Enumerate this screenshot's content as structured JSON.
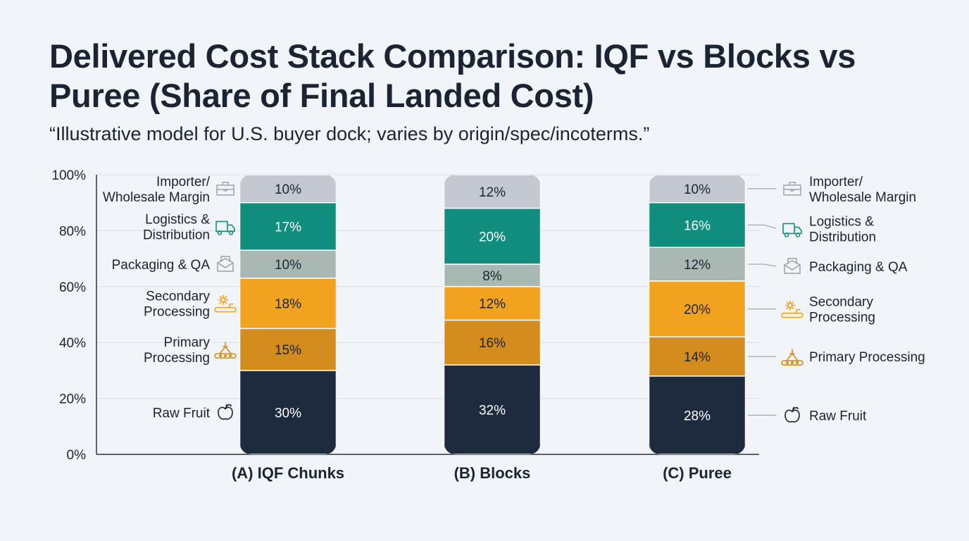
{
  "title": "Delivered Cost Stack Comparison: IQF vs Blocks vs Puree (Share  of Final Landed Cost)",
  "subtitle": "“Illustrative model for U.S. buyer dock; varies by origin/spec/incoterms.”",
  "colors": {
    "background": "#f1f4f8",
    "gridline": "#d9dee6",
    "axis": "#2b3340",
    "text": "#1b2433",
    "leader": "#9aa3ad"
  },
  "chart_data": {
    "type": "bar",
    "stacked": true,
    "ylim": [
      0,
      100
    ],
    "yticks": [
      "0%",
      "20%",
      "40%",
      "60%",
      "80%",
      "100%"
    ],
    "grid": true,
    "categories": [
      "(A) IQF Chunks",
      "(B) Blocks",
      "(C) Puree"
    ],
    "series": [
      {
        "name": "Raw Fruit",
        "color": "#1e2a3e",
        "label_color": "#ffffff",
        "icon": "apple-icon",
        "values": [
          30,
          32,
          28
        ]
      },
      {
        "name": "Primary Processing",
        "color": "#d48c1c",
        "label_color": "#1b2433",
        "icon": "conveyor-icon",
        "values": [
          15,
          16,
          14
        ]
      },
      {
        "name": "Secondary Processing",
        "color": "#f1a21f",
        "label_color": "#1b2433",
        "icon": "gear-conveyor-icon",
        "values": [
          18,
          12,
          20
        ]
      },
      {
        "name": "Packaging & QA",
        "color": "#a9b8b3",
        "label_color": "#1b2433",
        "icon": "package-icon",
        "values": [
          10,
          8,
          12
        ]
      },
      {
        "name": "Logistics & Distribution",
        "color": "#108d7d",
        "label_color": "#ffffff",
        "icon": "truck-icon",
        "values": [
          17,
          20,
          16
        ]
      },
      {
        "name": "Importer/ Wholesale Margin",
        "color": "#c3c8d1",
        "label_color": "#1b2433",
        "icon": "briefcase-icon",
        "values": [
          10,
          12,
          10
        ]
      }
    ],
    "data_labels": [
      [
        "30%",
        "32%",
        "28%"
      ],
      [
        "15%",
        "16%",
        "14%"
      ],
      [
        "18%",
        "12%",
        "20%"
      ],
      [
        "10%",
        "8%",
        "12%"
      ],
      [
        "17%",
        "20%",
        "16%"
      ],
      [
        "10%",
        "12%",
        "10%"
      ]
    ],
    "legend": {
      "left": [
        [
          "Raw Fruit"
        ],
        [
          "Primary",
          "Processing"
        ],
        [
          "Secondary",
          "Processing"
        ],
        [
          "Packaging & QA"
        ],
        [
          "Logistics &",
          "Distribution"
        ],
        [
          "Importer/",
          "Wholesale Margin"
        ]
      ],
      "right": [
        [
          "Raw Fruit"
        ],
        [
          "Primary Processing"
        ],
        [
          "Secondary",
          "Processing"
        ],
        [
          "Packaging & QA"
        ],
        [
          "Logistics &",
          "Distribution"
        ],
        [
          "Importer/",
          "Wholesale Margin"
        ]
      ]
    }
  }
}
